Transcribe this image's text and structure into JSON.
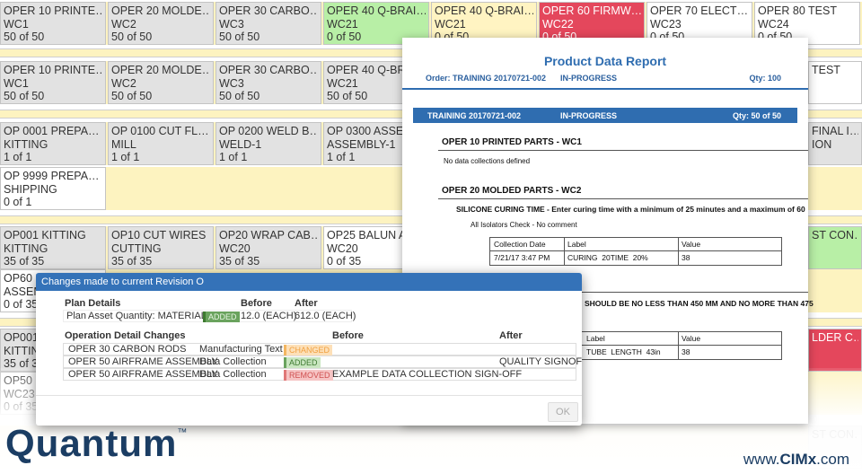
{
  "tile_rows": [
    {
      "tiles": [
        {
          "title": "OPER 10 PRINTE…",
          "station": "WC1",
          "count": "50 of 50",
          "color": "#e2e2e2"
        },
        {
          "title": "OPER 20 MOLDE…",
          "station": "WC2",
          "count": "50 of 50",
          "color": "#e2e2e2"
        },
        {
          "title": "OPER 30 CARBO…",
          "station": "WC3",
          "count": "50 of 50",
          "color": "#e2e2e2"
        },
        {
          "title": "OPER 40 Q-BRAI…",
          "station": "WC21",
          "count": "0 of 50",
          "color": "#b8efa6"
        },
        {
          "title": "OPER 40 Q-BRAI…",
          "station": "WC21",
          "count": "0 of 50",
          "color": "#fff4c2"
        },
        {
          "title": "OPER 60 FIRMW…",
          "station": "WC22",
          "count": "0 of 50",
          "color": "#e4475c"
        },
        {
          "title": "OPER 70 ELECT…",
          "station": "WC23",
          "count": "0 of 50",
          "color": "#ffffff"
        },
        {
          "title": "OPER 80 TEST",
          "station": "WC24",
          "count": "0 of 50",
          "color": "#ffffff"
        }
      ]
    },
    {
      "tiles": [
        {
          "title": "OPER 10 PRINTE…",
          "station": "WC1",
          "count": "50 of 50",
          "color": "#e2e2e2"
        },
        {
          "title": "OPER 20 MOLDE…",
          "station": "WC2",
          "count": "50 of 50",
          "color": "#e2e2e2"
        },
        {
          "title": "OPER 30 CARBO…",
          "station": "WC3",
          "count": "50 of 50",
          "color": "#e2e2e2"
        },
        {
          "title": "OPER 40 Q-BRA",
          "station": "WC21",
          "count": "50 of 50",
          "color": "#e2e2e2"
        }
      ],
      "edge": {
        "title": "TEST",
        "color": "#ffffff"
      }
    },
    {
      "tiles": [
        {
          "title": "OP 0001 PREPA…",
          "station": "KITTING",
          "count": "1 of 1",
          "color": "#e2e2e2"
        },
        {
          "title": "OP 0100 CUT FL…",
          "station": "MILL",
          "count": "1 of 1",
          "color": "#e2e2e2"
        },
        {
          "title": "OP 0200 WELD B…",
          "station": "WELD-1",
          "count": "1 of 1",
          "color": "#e2e2e2"
        },
        {
          "title": "OP 0300 ASSE",
          "station": "ASSEMBLY-1",
          "count": "1 of 1",
          "color": "#e2e2e2"
        }
      ],
      "edge": {
        "title": "FINAL I…",
        "station": "ION",
        "color": "#e2e2e2"
      }
    },
    {
      "tiles": [
        {
          "title": "OP 9999 PREPA…",
          "station": "SHIPPING",
          "count": "0 of 1",
          "color": "#ffffff"
        }
      ]
    },
    {
      "tiles": [
        {
          "title": "OP001 KITTING",
          "station": "KITTING",
          "count": "35 of 35",
          "color": "#e2e2e2"
        },
        {
          "title": "OP10 CUT WIRES",
          "station": "CUTTING",
          "count": "35 of 35",
          "color": "#e2e2e2"
        },
        {
          "title": "OP20 WRAP CAB…",
          "station": "WC20",
          "count": "35 of 35",
          "color": "#e2e2e2"
        },
        {
          "title": "OP25 BALUN A",
          "station": "WC20",
          "count": "0 of 35",
          "color": "#ffffff"
        }
      ],
      "edge": {
        "title": "ST CON…",
        "color": "#b8efa6"
      }
    },
    {
      "tiles": [
        {
          "title": "OP60 F",
          "station": "ASSEM",
          "count": "0 of 35",
          "color": "#ffffff"
        }
      ]
    },
    {
      "tiles": [
        {
          "title": "OP001",
          "station": "KITTIN",
          "count": "35 of 3",
          "color": "#e2e2e2"
        }
      ],
      "edge": {
        "title": "LDER C…",
        "color": "#e4475c"
      }
    },
    {
      "tiles": [
        {
          "title": "OP50 S",
          "station": "WC23",
          "count": "0 of 35",
          "color": "#ffffff"
        }
      ]
    },
    {
      "tiles": [],
      "edge": {
        "title": "ST CON…",
        "color": "#e2e2e2"
      }
    }
  ],
  "report": {
    "title": "Product Data Report",
    "order": {
      "label": "Order: TRAINING 20170721-002",
      "status": "IN-PROGRESS",
      "qty": "Qty: 100"
    },
    "unit": {
      "label": "TRAINING 20170721-002",
      "status": "IN-PROGRESS",
      "qty": "Qty: 50 of 50"
    },
    "sections": [
      {
        "heading": "OPER 10 PRINTED PARTS - WC1",
        "note": "No data collections defined"
      },
      {
        "heading": "OPER 20 MOLDED PARTS - WC2",
        "instruction": "SILICONE CURING TIME - Enter curing time with a minimum of 25 minutes and a maximum of 60",
        "note": "All Isolators Check - No comment",
        "table": {
          "header": [
            "Collection Date",
            "Label",
            "Value"
          ],
          "rows": [
            [
              "7/21/17 3:47 PM",
              "CURING  20TIME  20%",
              "38"
            ]
          ]
        }
      },
      {
        "instruction": "SHOULD BE NO LESS THAN 450 MM AND NO MORE THAN 475",
        "table": {
          "header": [
            "Label",
            "Value"
          ],
          "rows": [
            [
              "TUBE  LENGTH  43in",
              "38"
            ]
          ]
        }
      }
    ]
  },
  "dialog": {
    "title": "Changes made to current Revision O",
    "plan": {
      "heading": "Plan Details",
      "before_heading": "Before",
      "after_heading": "After",
      "row": {
        "group": "Plan",
        "field": "Asset Quantity: MATERIAL",
        "change": "ADDED",
        "before": "12.0 (EACH)",
        "after": "612.0 (EACH)"
      }
    },
    "operations": {
      "heading": "Operation Detail Changes",
      "before_heading": "Before",
      "after_heading": "After",
      "rows": [
        {
          "operation": "OPER 30 CARBON RODS",
          "type": "Manufacturing Text",
          "change": "CHANGED"
        },
        {
          "operation": "OPER 50 AIRFRAME ASSEMBLY",
          "type": "Data Collection",
          "change": "ADDED",
          "after": "QUALITY SIGNOFF"
        },
        {
          "operation": "OPER 50 AIRFRAME ASSEMBLY",
          "type": "Data Collection",
          "change": "REMOVED",
          "before": "EXAMPLE DATA COLLECTION SIGN-OFF"
        }
      ]
    },
    "ok": "OK"
  },
  "footer": {
    "logo": "Quantum",
    "trademark": "™",
    "site_prefix": "www.",
    "site_brand": "CIMx",
    "site_suffix": ".com"
  }
}
